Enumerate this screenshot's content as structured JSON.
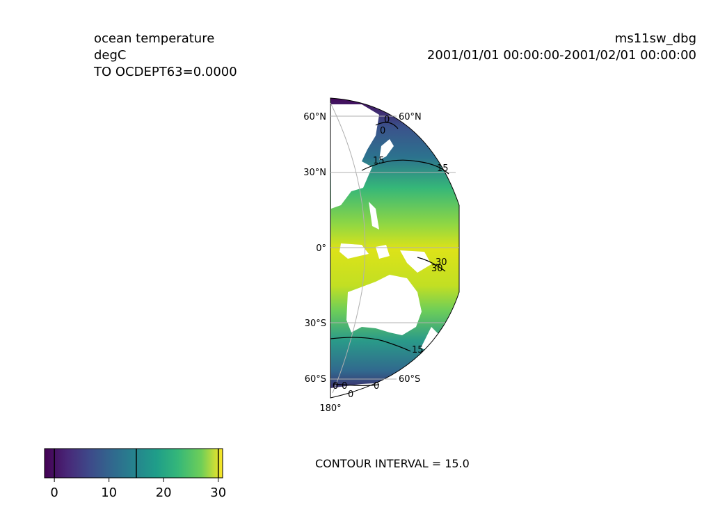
{
  "header_left": {
    "variable": "ocean temperature",
    "units": "degC",
    "level": "TO OCDEPT63=0.0000"
  },
  "header_right": {
    "experiment": "ms11sw_dbg",
    "time_range": "2001/01/01 00:00:00-2001/02/01 00:00:00"
  },
  "map": {
    "projection": "orthographic",
    "colormap": "viridis",
    "lat_labels_left": [
      "60°N",
      "30°N",
      "0°",
      "30°S",
      "60°S"
    ],
    "lat_labels_right": [
      "60°N",
      "60°S"
    ],
    "lon_labels": [
      "180°"
    ],
    "contour_labels": [
      "0",
      "0",
      "15",
      "15",
      "15",
      "30",
      "30",
      "0",
      "0",
      "0",
      "0"
    ]
  },
  "colorbar": {
    "min": -1.8,
    "max": 30.8,
    "ticks": [
      "0",
      "10",
      "20",
      "30"
    ],
    "contour_levels": [
      0,
      15,
      30
    ]
  },
  "footer": {
    "contour_interval": "CONTOUR INTERVAL = 15.0"
  }
}
